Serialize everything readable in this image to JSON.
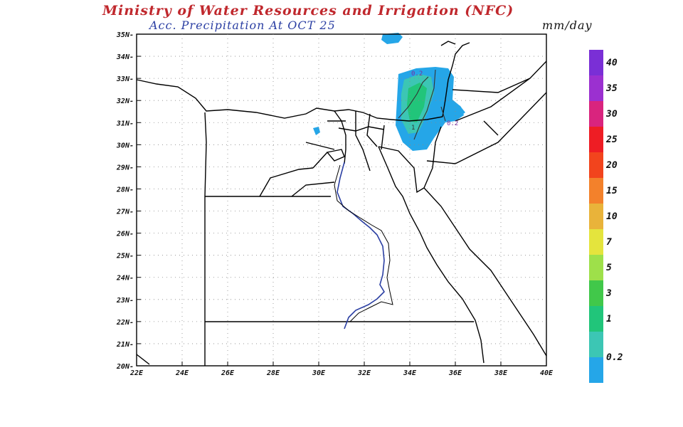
{
  "header": {
    "title": "Ministry of Water Resources and Irrigation (NFC)",
    "subtitle": "Acc. Precipitation   At OCT 25",
    "units": "mm/day"
  },
  "map": {
    "lat_labels": [
      "35N",
      "34N",
      "33N",
      "32N",
      "31N",
      "30N",
      "29N",
      "28N",
      "27N",
      "26N",
      "25N",
      "24N",
      "23N",
      "22N",
      "21N",
      "20N"
    ],
    "lon_labels": [
      "22E",
      "24E",
      "26E",
      "28E",
      "30E",
      "32E",
      "34E",
      "36E",
      "38E",
      "40E"
    ],
    "contour_labels": [
      "0.2",
      "1",
      "0.2"
    ]
  },
  "colorbar": {
    "labels": [
      "40",
      "35",
      "30",
      "25",
      "20",
      "15",
      "10",
      "7",
      "5",
      "3",
      "1",
      "0.2"
    ],
    "colors": [
      "#7a2fd6",
      "#9b30d0",
      "#d9247e",
      "#ee1d24",
      "#f2441d",
      "#f3812b",
      "#e9b33a",
      "#e4e43d",
      "#9ee04a",
      "#41c84a",
      "#21c57a",
      "#3cc6b4",
      "#25a6e8"
    ]
  }
}
